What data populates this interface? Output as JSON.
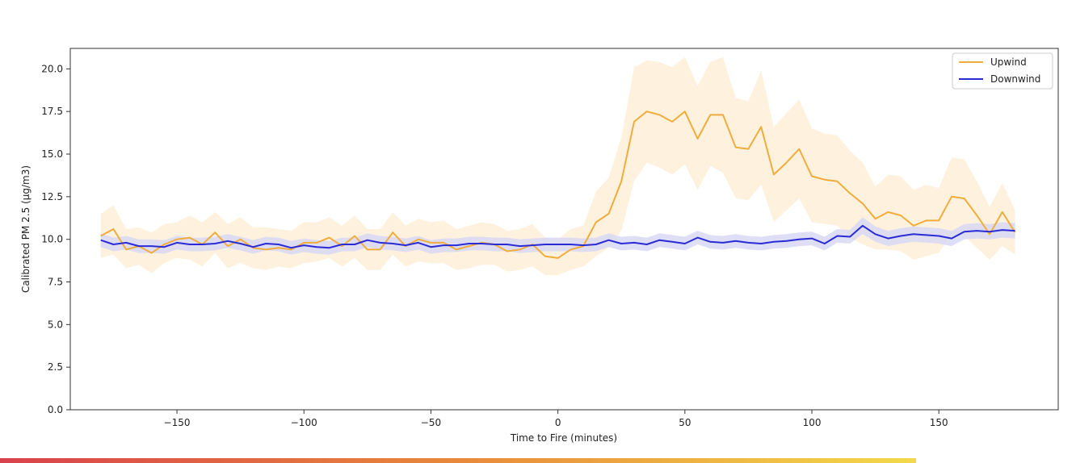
{
  "chart_data": {
    "type": "line",
    "title": "",
    "xlabel": "Time to Fire (minutes)",
    "ylabel": "Calibrated PM 2.5 (µg/m3)",
    "xlim": [
      -192,
      197
    ],
    "ylim": [
      0,
      21.2
    ],
    "xticks": [
      -150,
      -100,
      -50,
      0,
      50,
      100,
      150
    ],
    "xtick_labels": [
      "−150",
      "−100",
      "−50",
      "0",
      "50",
      "100",
      "150"
    ],
    "yticks": [
      0,
      2.5,
      5,
      7.5,
      10,
      12.5,
      15,
      17.5,
      20
    ],
    "ytick_labels": [
      "0.0",
      "2.5",
      "5.0",
      "7.5",
      "10.0",
      "12.5",
      "15.0",
      "17.5",
      "20.0"
    ],
    "grid": false,
    "legend_position": "top-right",
    "x": [
      -180,
      -175,
      -170,
      -165,
      -160,
      -155,
      -150,
      -145,
      -140,
      -135,
      -130,
      -125,
      -120,
      -115,
      -110,
      -105,
      -100,
      -95,
      -90,
      -85,
      -80,
      -75,
      -70,
      -65,
      -60,
      -55,
      -50,
      -45,
      -40,
      -35,
      -30,
      -25,
      -20,
      -15,
      -10,
      -5,
      0,
      5,
      10,
      15,
      20,
      25,
      30,
      35,
      40,
      45,
      50,
      55,
      60,
      65,
      70,
      75,
      80,
      85,
      90,
      95,
      100,
      105,
      110,
      115,
      120,
      125,
      130,
      135,
      140,
      145,
      150,
      155,
      160,
      165,
      170,
      175,
      180
    ],
    "series": [
      {
        "name": "Upwind",
        "color": "#f0ad3c",
        "band_color": "#fdecd2",
        "values": [
          10.2,
          10.6,
          9.4,
          9.6,
          9.2,
          9.7,
          10.0,
          10.1,
          9.7,
          10.4,
          9.6,
          10.0,
          9.5,
          9.4,
          9.5,
          9.4,
          9.8,
          9.8,
          10.1,
          9.6,
          10.2,
          9.4,
          9.4,
          10.4,
          9.6,
          10.0,
          9.8,
          9.8,
          9.4,
          9.6,
          9.8,
          9.7,
          9.3,
          9.4,
          9.7,
          9.0,
          8.9,
          9.4,
          9.6,
          11.0,
          11.5,
          13.4,
          16.9,
          17.5,
          17.3,
          16.9,
          17.5,
          15.9,
          17.3,
          17.3,
          15.4,
          15.3,
          16.6,
          13.8,
          14.5,
          15.3,
          13.7,
          13.5,
          13.4,
          12.7,
          12.1,
          11.2,
          11.6,
          11.4,
          10.8,
          11.1,
          11.1,
          12.5,
          12.4,
          11.4,
          10.3,
          11.6,
          10.4
        ],
        "lower": [
          8.9,
          9.1,
          8.3,
          8.5,
          8.0,
          8.6,
          8.9,
          8.8,
          8.4,
          9.2,
          8.3,
          8.6,
          8.3,
          8.2,
          8.4,
          8.3,
          8.6,
          8.7,
          8.9,
          8.4,
          8.9,
          8.2,
          8.2,
          9.1,
          8.4,
          8.7,
          8.6,
          8.6,
          8.2,
          8.3,
          8.5,
          8.5,
          8.1,
          8.2,
          8.4,
          7.9,
          7.9,
          8.2,
          8.4,
          9.0,
          9.5,
          10.5,
          13.4,
          14.5,
          14.2,
          13.8,
          14.4,
          12.9,
          14.3,
          13.9,
          12.4,
          12.3,
          13.2,
          11.0,
          11.7,
          12.4,
          11.0,
          10.9,
          10.8,
          10.1,
          9.7,
          9.4,
          9.4,
          9.3,
          8.8,
          9.0,
          9.2,
          10.3,
          10.2,
          9.5,
          8.8,
          9.6,
          9.1
        ],
        "upper": [
          11.5,
          12.0,
          10.6,
          10.7,
          10.4,
          10.9,
          11.0,
          11.4,
          11.0,
          11.6,
          10.9,
          11.3,
          10.7,
          10.7,
          10.6,
          10.5,
          11.0,
          11.0,
          11.3,
          10.8,
          11.4,
          10.6,
          10.6,
          11.6,
          10.8,
          11.2,
          11.0,
          11.1,
          10.6,
          10.8,
          11.0,
          10.9,
          10.5,
          10.6,
          10.9,
          10.1,
          10.0,
          10.6,
          10.8,
          12.8,
          13.6,
          16.0,
          20.1,
          20.5,
          20.4,
          20.1,
          20.7,
          19.0,
          20.4,
          20.7,
          18.3,
          18.1,
          19.9,
          16.6,
          17.4,
          18.2,
          16.5,
          16.2,
          16.1,
          15.2,
          14.5,
          13.1,
          13.8,
          13.7,
          12.9,
          13.2,
          13.0,
          14.8,
          14.7,
          13.4,
          11.9,
          13.3,
          11.7
        ]
      },
      {
        "name": "Downwind",
        "color": "#2b2bd6",
        "band_color": "#d8d8f5",
        "values": [
          9.95,
          9.7,
          9.8,
          9.6,
          9.6,
          9.55,
          9.8,
          9.7,
          9.7,
          9.75,
          9.9,
          9.75,
          9.55,
          9.75,
          9.7,
          9.5,
          9.65,
          9.55,
          9.5,
          9.7,
          9.7,
          9.95,
          9.8,
          9.75,
          9.65,
          9.8,
          9.55,
          9.65,
          9.65,
          9.75,
          9.75,
          9.7,
          9.7,
          9.6,
          9.65,
          9.7,
          9.7,
          9.7,
          9.65,
          9.7,
          9.95,
          9.75,
          9.8,
          9.7,
          9.95,
          9.85,
          9.75,
          10.1,
          9.85,
          9.8,
          9.9,
          9.8,
          9.75,
          9.85,
          9.9,
          10.0,
          10.05,
          9.75,
          10.2,
          10.15,
          10.8,
          10.3,
          10.05,
          10.2,
          10.3,
          10.25,
          10.2,
          10.05,
          10.45,
          10.5,
          10.45,
          10.55,
          10.5
        ],
        "lower": [
          9.55,
          9.3,
          9.4,
          9.2,
          9.2,
          9.15,
          9.4,
          9.3,
          9.3,
          9.35,
          9.5,
          9.35,
          9.15,
          9.35,
          9.3,
          9.1,
          9.25,
          9.15,
          9.1,
          9.3,
          9.3,
          9.55,
          9.4,
          9.35,
          9.25,
          9.4,
          9.15,
          9.25,
          9.25,
          9.35,
          9.35,
          9.3,
          9.3,
          9.2,
          9.25,
          9.3,
          9.3,
          9.3,
          9.25,
          9.3,
          9.55,
          9.35,
          9.4,
          9.3,
          9.55,
          9.45,
          9.35,
          9.7,
          9.45,
          9.4,
          9.5,
          9.4,
          9.35,
          9.45,
          9.5,
          9.6,
          9.65,
          9.35,
          9.8,
          9.75,
          10.3,
          9.85,
          9.6,
          9.75,
          9.85,
          9.8,
          9.75,
          9.6,
          10.0,
          10.05,
          10.0,
          10.1,
          10.05
        ],
        "upper": [
          10.35,
          10.1,
          10.2,
          10.0,
          10.0,
          9.95,
          10.2,
          10.1,
          10.1,
          10.15,
          10.3,
          10.15,
          9.95,
          10.15,
          10.1,
          9.9,
          10.05,
          9.95,
          9.9,
          10.1,
          10.1,
          10.35,
          10.2,
          10.15,
          10.05,
          10.2,
          9.95,
          10.05,
          10.05,
          10.15,
          10.15,
          10.1,
          10.1,
          10.0,
          10.05,
          10.1,
          10.1,
          10.1,
          10.05,
          10.1,
          10.35,
          10.15,
          10.2,
          10.1,
          10.35,
          10.25,
          10.15,
          10.5,
          10.25,
          10.2,
          10.3,
          10.2,
          10.15,
          10.25,
          10.3,
          10.4,
          10.45,
          10.15,
          10.6,
          10.55,
          11.3,
          10.75,
          10.5,
          10.65,
          10.75,
          10.7,
          10.65,
          10.5,
          10.9,
          10.95,
          10.9,
          11.0,
          10.95
        ]
      }
    ]
  },
  "bottom_bar": {
    "gradient_start": "#d9424c",
    "gradient_mid": "#e8893a",
    "gradient_end": "#f3d94a"
  }
}
